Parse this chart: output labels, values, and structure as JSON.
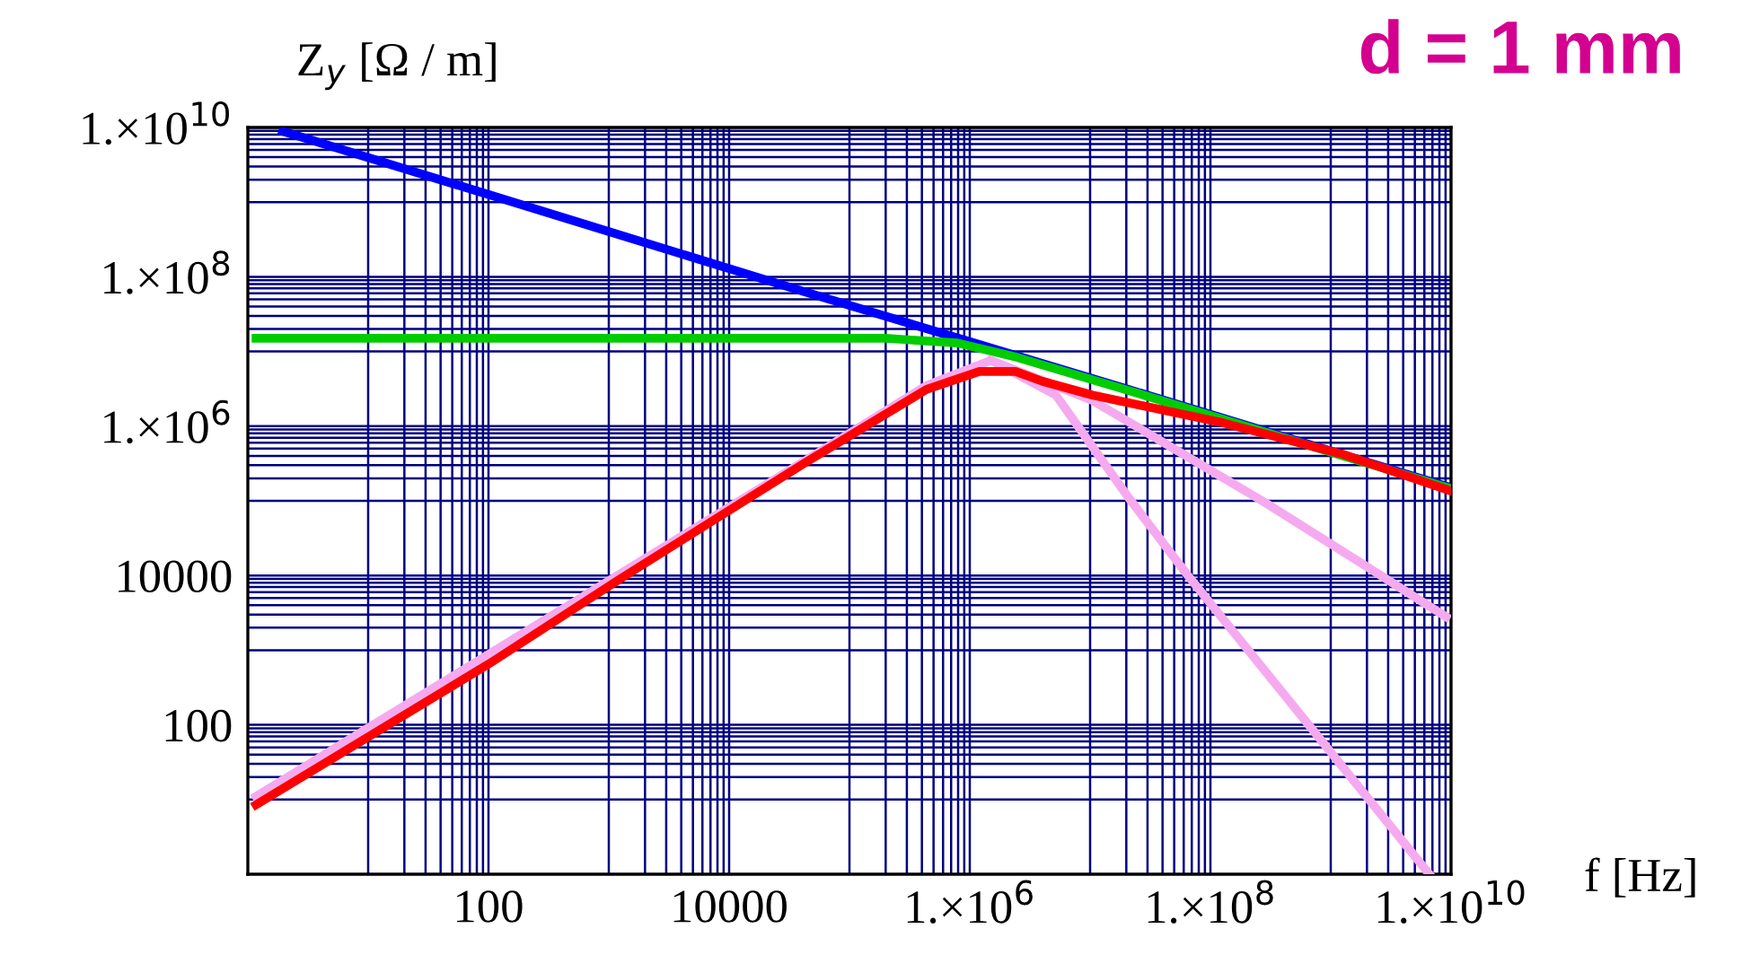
{
  "chart_data": {
    "type": "line",
    "title": "d = 1 mm",
    "xlabel": "f [Hz]",
    "ylabel": "Z$_{y}$ [Ω / m]",
    "log": "xy",
    "grid": true,
    "marker": "none",
    "line_style": "solid",
    "xlim": [
      1,
      10000000000.0
    ],
    "ylim": [
      1,
      10000000000.0
    ],
    "xticks": [
      100,
      10000,
      {
        "value": 1000000.0,
        "label": "1.×10$^{6}$"
      },
      {
        "value": 100000000.0,
        "label": "1.×10$^{8}$"
      },
      {
        "value": 10000000000.0,
        "label": "1.×10$^{10}$"
      }
    ],
    "yticks": [
      100,
      10000,
      {
        "value": 1000000.0,
        "label": "1.×10$^{6}$"
      },
      {
        "value": 100000000.0,
        "label": "1.×10$^{8}$"
      },
      {
        "value": 10000000000.0,
        "label": "1.×10$^{10}$"
      }
    ],
    "series": [
      {
        "color": "#0000ff",
        "x": [
          1.95,
          43650,
          20900000.0,
          10000000000.0
        ],
        "values": [
          8900000000.0,
          62000000.0,
          3100000.0,
          150000.0
        ]
      },
      {
        "color": "#00cc00",
        "x": [
          1.17,
          200000.0,
          790000.0,
          2500000.0,
          20900000.0,
          10000000000.0
        ],
        "values": [
          15000000.0,
          15000000.0,
          13000000.0,
          8300000.0,
          3000000.0,
          145000.0
        ]
      },
      {
        "color": "#f5aaf0",
        "x": [
          1.17,
          43650,
          437000.0,
          1500000.0,
          5200000.0,
          20900000.0,
          65000000.0,
          6600000000.0
        ],
        "values": [
          11,
          350000.0,
          3500000.0,
          7600000.0,
          2600000.0,
          110000.0,
          10000.0,
          1
        ]
      },
      {
        "color": "#f5aaf0",
        "x": [
          1500000.0,
          10500000.0,
          290000000.0,
          9100000000.0
        ],
        "values": [
          7600000.0,
          2200000.0,
          93000.0,
          2800.0
        ]
      },
      {
        "color": "#ff0000",
        "x": [
          1.17,
          100,
          1200,
          43650,
          437000.0,
          1200000.0,
          2400000.0,
          4000000.0,
          10500000.0,
          129000000.0,
          1260000000.0,
          10000000000.0
        ],
        "values": [
          8.5,
          650,
          8700,
          330000.0,
          3100000.0,
          5400000.0,
          5400000.0,
          4000000.0,
          2600000.0,
          1100000.0,
          420000.0,
          135000.0
        ]
      }
    ]
  }
}
